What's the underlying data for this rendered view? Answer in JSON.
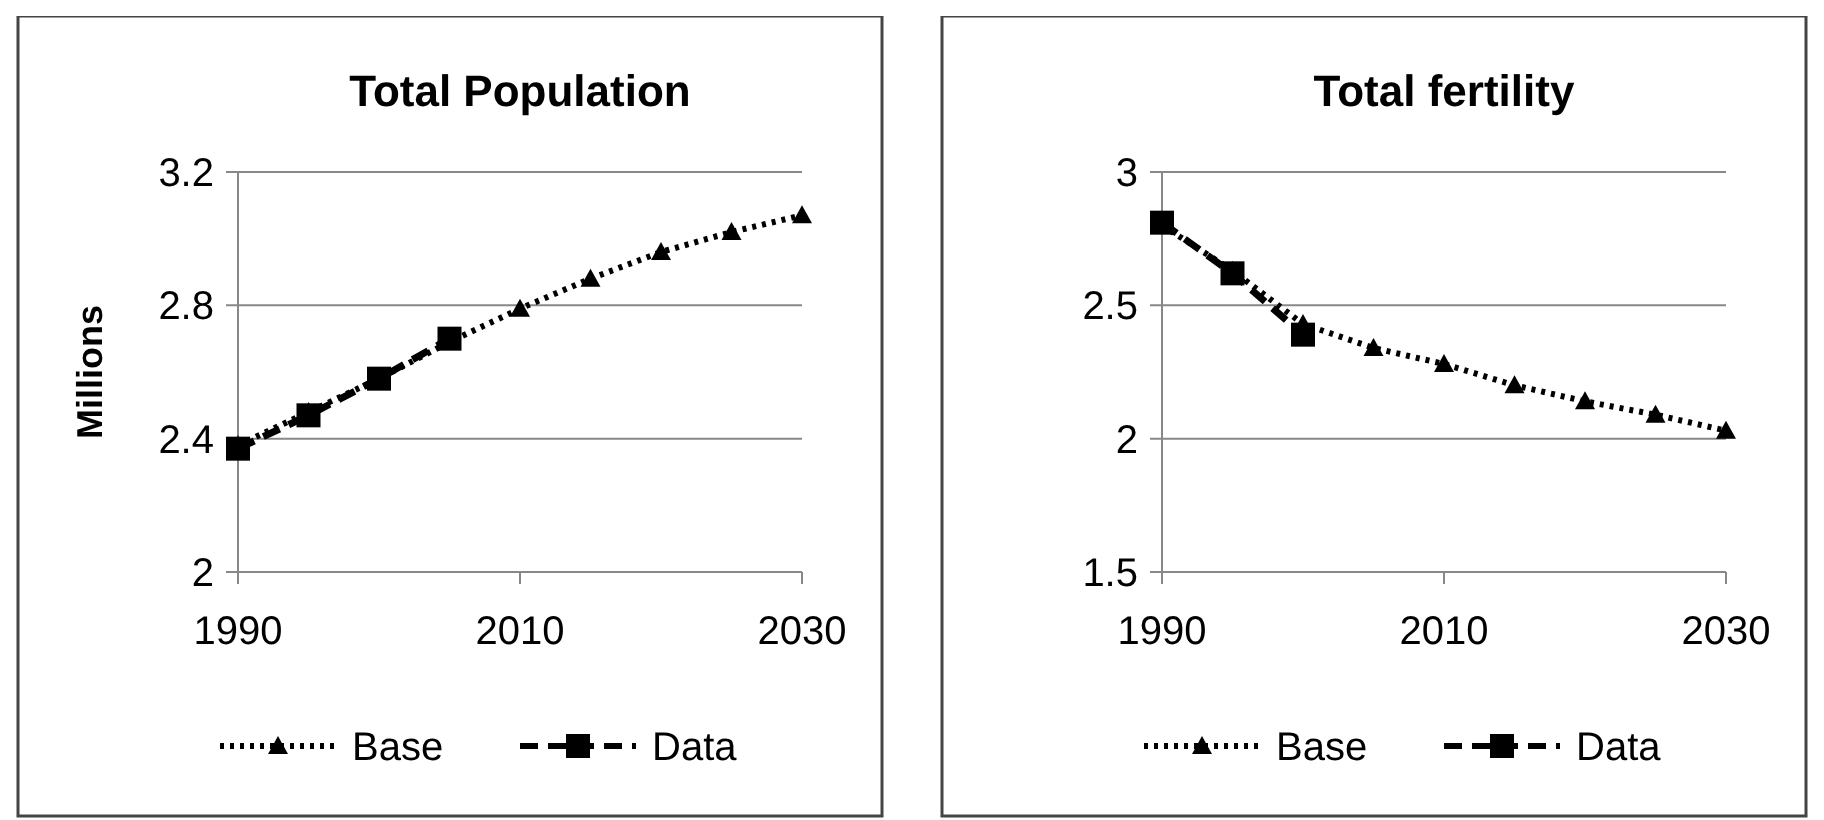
{
  "chart_data": [
    {
      "type": "line",
      "title": "Total Population",
      "ylabel": "Millions",
      "xlim": [
        1990,
        2030
      ],
      "xticks": [
        1990,
        2010,
        2030
      ],
      "ylim": [
        2,
        3.2
      ],
      "yticks": [
        2,
        2.4,
        2.8,
        3.2
      ],
      "grid": "y",
      "legend": "bottom",
      "series": [
        {
          "name": "Base",
          "color": "#000000",
          "line_style": "dotted",
          "marker": "triangle",
          "x": [
            1990,
            1995,
            2000,
            2005,
            2010,
            2015,
            2020,
            2025,
            2030
          ],
          "values": [
            2.38,
            2.48,
            2.58,
            2.69,
            2.79,
            2.88,
            2.96,
            3.02,
            3.07
          ]
        },
        {
          "name": "Data",
          "color": "#000000",
          "line_style": "dashed",
          "marker": "square",
          "x": [
            1990,
            1995,
            2000,
            2005
          ],
          "values": [
            2.37,
            2.47,
            2.58,
            2.7
          ]
        }
      ]
    },
    {
      "type": "line",
      "title": "Total fertility",
      "xlim": [
        1990,
        2030
      ],
      "xticks": [
        1990,
        2010,
        2030
      ],
      "ylim": [
        1.5,
        3
      ],
      "yticks": [
        1.5,
        2,
        2.5,
        3
      ],
      "grid": "y",
      "legend": "bottom",
      "series": [
        {
          "name": "Base",
          "color": "#000000",
          "line_style": "dotted",
          "marker": "triangle",
          "x": [
            1990,
            1995,
            2000,
            2005,
            2010,
            2015,
            2020,
            2025,
            2030
          ],
          "values": [
            2.8,
            2.63,
            2.43,
            2.34,
            2.28,
            2.2,
            2.14,
            2.09,
            2.03
          ]
        },
        {
          "name": "Data",
          "color": "#000000",
          "line_style": "dashed",
          "marker": "square",
          "x": [
            1990,
            1995,
            2000
          ],
          "values": [
            2.81,
            2.62,
            2.39
          ]
        }
      ]
    }
  ]
}
